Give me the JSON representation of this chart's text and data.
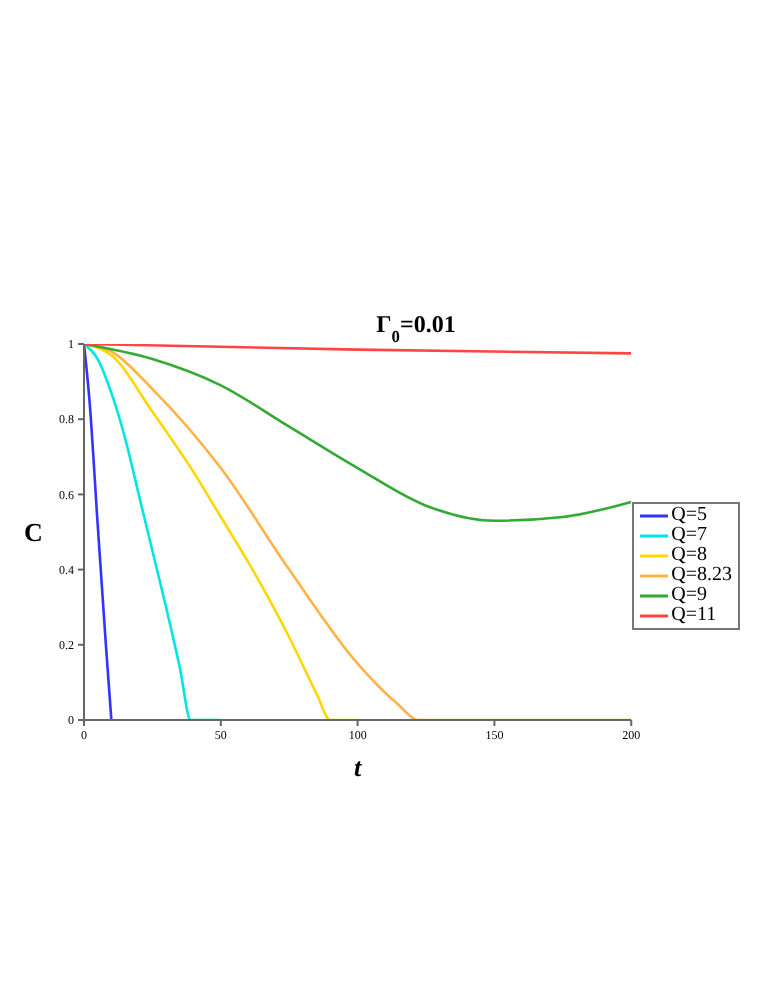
{
  "chart_data": {
    "type": "line",
    "title": "Γ$_{0}$=0.01",
    "xlabel": "t",
    "ylabel": "C",
    "xlim": [
      0,
      200
    ],
    "xticks": [
      0,
      50,
      100,
      150,
      200
    ],
    "ylim": [
      0,
      1
    ],
    "yticks": [
      0,
      0.2,
      0.4,
      0.6,
      0.8,
      1
    ],
    "grid": false,
    "legend": "right",
    "marker": "none",
    "line_style": "solid",
    "series": [
      {
        "name": "Q=5",
        "color": "#3333ff",
        "x": [
          0,
          2,
          5,
          8,
          10
        ],
        "values": [
          1,
          0.85,
          0.52,
          0.2,
          0
        ]
      },
      {
        "name": "Q=7",
        "color": "#00e5e5",
        "x": [
          0,
          5,
          10,
          15,
          20,
          25,
          30,
          35,
          39,
          50
        ],
        "values": [
          1,
          0.96,
          0.87,
          0.75,
          0.6,
          0.45,
          0.3,
          0.14,
          0,
          0
        ]
      },
      {
        "name": "Q=8",
        "color": "#ffd700",
        "x": [
          0,
          10,
          25,
          40,
          50,
          60,
          75,
          85,
          90,
          100
        ],
        "values": [
          1,
          0.97,
          0.82,
          0.66,
          0.54,
          0.42,
          0.22,
          0.07,
          0,
          0
        ]
      },
      {
        "name": "Q=8.23",
        "color": "#ffb347",
        "x": [
          0,
          10,
          25,
          50,
          75,
          100,
          115,
          122,
          150,
          200
        ],
        "values": [
          1,
          0.98,
          0.88,
          0.67,
          0.4,
          0.15,
          0.04,
          0,
          0,
          0
        ]
      },
      {
        "name": "Q=9",
        "color": "#33aa33",
        "x": [
          0,
          25,
          50,
          75,
          100,
          125,
          150,
          175,
          200
        ],
        "values": [
          1,
          0.96,
          0.89,
          0.78,
          0.67,
          0.57,
          0.53,
          0.54,
          0.58
        ]
      },
      {
        "name": "Q=11",
        "color": "#ff4444",
        "x": [
          0,
          100,
          200
        ],
        "values": [
          1,
          0.985,
          0.975
        ]
      }
    ]
  }
}
